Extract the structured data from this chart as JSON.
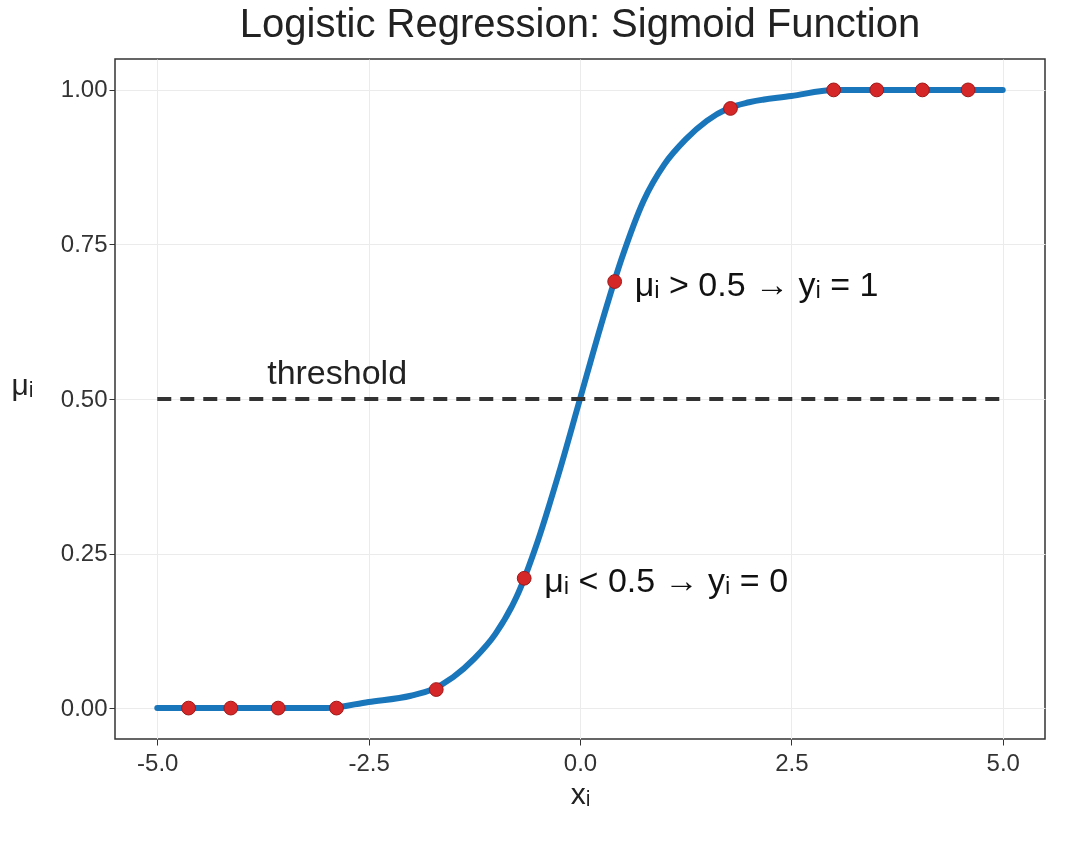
{
  "chart_data": {
    "type": "line",
    "title": "Logistic Regression: Sigmoid Function",
    "xlabel": "xᵢ",
    "ylabel": "μᵢ",
    "xlim": [
      -5.5,
      5.5
    ],
    "ylim": [
      -0.05,
      1.05
    ],
    "xticks": [
      {
        "value": -5,
        "label": "-5.0"
      },
      {
        "value": -2.5,
        "label": "-2.5"
      },
      {
        "value": 0,
        "label": "0.0"
      },
      {
        "value": 2.5,
        "label": "2.5"
      },
      {
        "value": 5,
        "label": "5.0"
      }
    ],
    "yticks": [
      {
        "value": 0,
        "label": "0.00"
      },
      {
        "value": 0.25,
        "label": "0.25"
      },
      {
        "value": 0.5,
        "label": "0.50"
      },
      {
        "value": 0.75,
        "label": "0.75"
      },
      {
        "value": 1,
        "label": "1.00"
      }
    ],
    "grid": true,
    "line_style": "solid",
    "series": [
      {
        "color": "#1a76bb",
        "x": [
          -5,
          -4,
          -3,
          -2.5,
          -2,
          -1.75,
          -1.5,
          -1.25,
          -1,
          -0.75,
          -0.5,
          -0.25,
          0,
          0.25,
          0.5,
          0.75,
          1,
          1.25,
          1.5,
          1.75,
          2,
          2.5,
          3,
          4,
          5
        ],
        "values": [
          0,
          0,
          0,
          0.01,
          0.02,
          0.03,
          0.05,
          0.08,
          0.12,
          0.18,
          0.27,
          0.38,
          0.5,
          0.62,
          0.73,
          0.82,
          0.88,
          0.92,
          0.95,
          0.97,
          0.98,
          0.99,
          1,
          1,
          1
        ]
      },
      {
        "type": "scatter",
        "marker": "circle",
        "color": "#d62728",
        "x": [
          -4.63,
          -4.13,
          -3.57,
          -2.88,
          -1.7,
          -0.66,
          0.41,
          1.78,
          3.0,
          3.51,
          4.05,
          4.59
        ],
        "values": [
          0,
          0,
          0,
          0,
          0.03,
          0.21,
          0.69,
          0.97,
          1,
          1,
          1,
          1
        ]
      }
    ],
    "ref_lines": [
      {
        "axis": "y",
        "value": 0.5,
        "label": "threshold",
        "color": "#333333",
        "line_style": "dashed"
      }
    ],
    "annotations": [
      {
        "text": "μᵢ > 0.5 → yᵢ = 1",
        "x": 0.41,
        "y": 0.69
      },
      {
        "text": "μᵢ < 0.5 → yᵢ = 0",
        "x": -0.66,
        "y": 0.21
      }
    ]
  }
}
